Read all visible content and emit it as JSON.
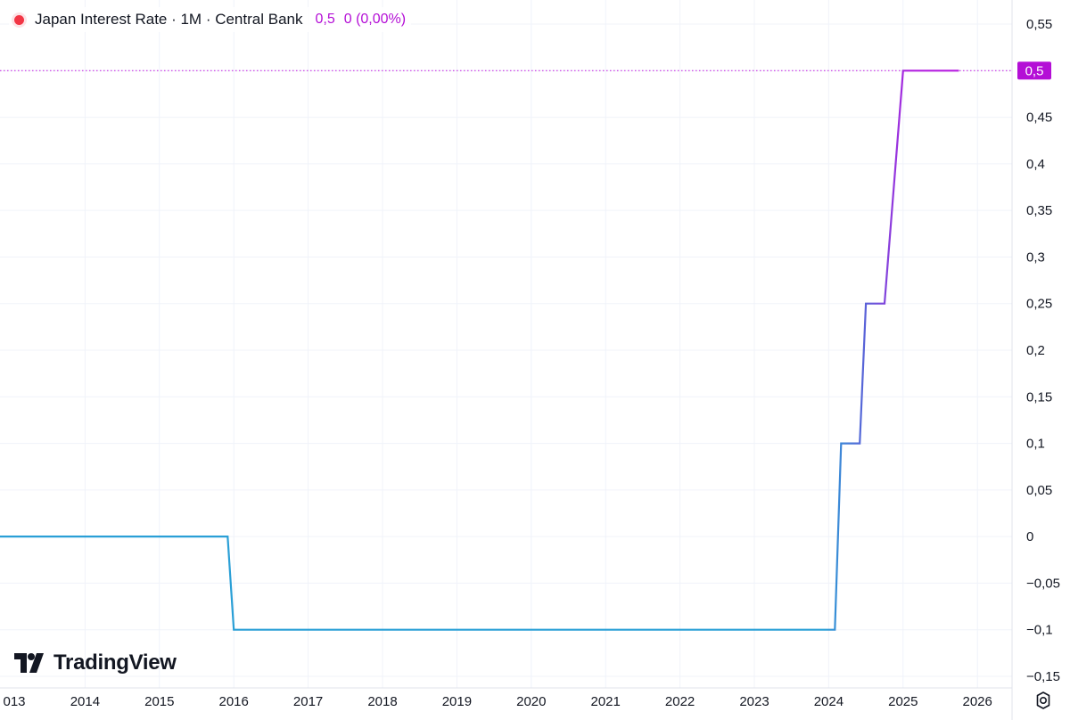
{
  "legend": {
    "title": "Japan Interest Rate · 1M · Central Bank",
    "value": "0,5",
    "change": "0 (0,00%)"
  },
  "branding": {
    "logo_text": "TradingView"
  },
  "colors": {
    "line_start": "#2a9fd6",
    "line_mid": "#5b5fd8",
    "line_end": "#c213e0",
    "last_label_bg": "#b40fd6"
  },
  "chart_data": {
    "type": "line",
    "title": "Japan Interest Rate · 1M · Central Bank",
    "xlabel": "",
    "ylabel": "",
    "x_ticks": [
      "013",
      "2014",
      "2015",
      "2016",
      "2017",
      "2018",
      "2019",
      "2020",
      "2021",
      "2022",
      "2023",
      "2024",
      "2025",
      "2026"
    ],
    "y_ticks": [
      "0,55",
      "0,5",
      "0,45",
      "0,4",
      "0,35",
      "0,3",
      "0,25",
      "0,2",
      "0,15",
      "0,1",
      "0,05",
      "0",
      "−0,05",
      "−0,1",
      "−0,15"
    ],
    "ylim": [
      -0.15,
      0.55
    ],
    "xlim": [
      "2013-01",
      "2026-06"
    ],
    "grid": true,
    "last_value_label": "0,5",
    "series": [
      {
        "x": [
          "2013-01",
          "2015-12",
          "2016-01",
          "2024-02",
          "2024-03",
          "2024-06",
          "2024-07",
          "2024-10",
          "2025-01",
          "2025-10"
        ],
        "y": [
          0,
          0,
          -0.1,
          -0.1,
          0.1,
          0.1,
          0.25,
          0.25,
          0.5,
          0.5
        ]
      }
    ]
  }
}
